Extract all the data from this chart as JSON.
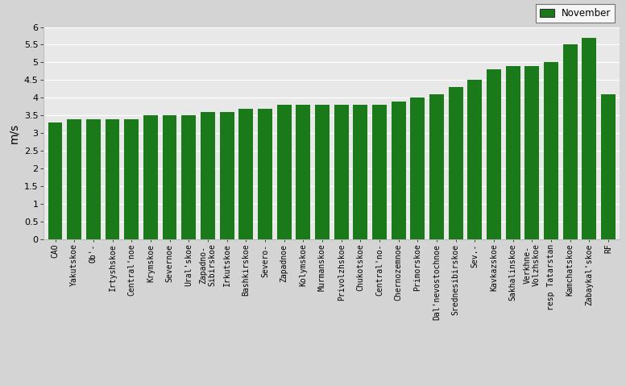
{
  "categories": [
    "CAO",
    "Yakutskoe",
    "Ob'-",
    "Irtyshskoe",
    "Central'noe",
    "Krymskoe",
    "Severnoe",
    "Ural'skoe",
    "Zapadno-\nSibirskoe",
    "Irkutskoe",
    "Bashkirskoe",
    "Severo-",
    "Zapadnoe",
    "Kolymskoe",
    "Murmanskoe",
    "Privolzhskoe",
    "Chukotskoe",
    "Central'no-",
    "Chernozemnoe",
    "Primorskoe",
    "Dal'nevostochnoe",
    "Srednesibirskoe",
    "Sev.-",
    "Kavkazskoe",
    "Sakhalinskoe",
    "Verkhnе-\nVolzhskoe",
    "resp Tatarstan",
    "Kamchatskoe",
    "Zabaykal'skoe",
    "RF"
  ],
  "values": [
    3.3,
    3.4,
    3.4,
    3.4,
    3.4,
    3.5,
    3.5,
    3.5,
    3.6,
    3.6,
    3.7,
    3.7,
    3.8,
    3.8,
    3.8,
    3.8,
    3.8,
    3.8,
    3.9,
    4.0,
    4.1,
    4.3,
    4.5,
    4.8,
    4.9,
    4.9,
    5.0,
    5.5,
    5.7,
    4.1
  ],
  "bar_color": "#1a7a1a",
  "ylabel": "m/s",
  "ylim": [
    0,
    6
  ],
  "ytick_values": [
    0,
    0.5,
    1.0,
    1.5,
    2.0,
    2.5,
    3.0,
    3.5,
    4.0,
    4.5,
    5.0,
    5.5,
    6.0
  ],
  "ytick_labels": [
    "0",
    "0.5",
    "1",
    "1.5",
    "2",
    "2.5",
    "3",
    "3.5",
    "4",
    "4.5",
    "5",
    "5.5",
    "6"
  ],
  "legend_label": "November",
  "legend_color": "#1a7a1a",
  "plot_bg_color": "#e8e8e8",
  "fig_bg_color": "#d4d4d4",
  "grid_color": "#ffffff",
  "spine_color": "#aaaaaa"
}
